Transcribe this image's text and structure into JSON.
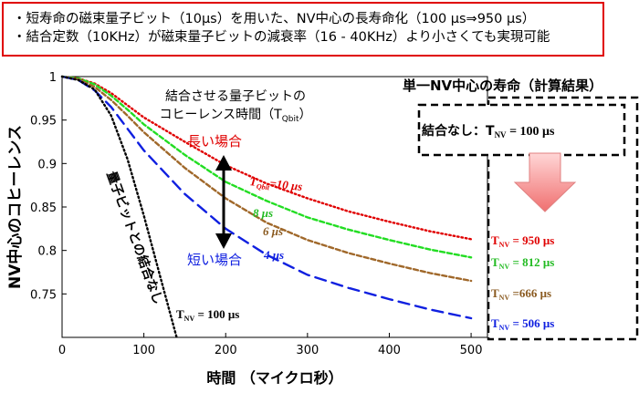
{
  "banner": {
    "line1": "・短寿命の磁束量子ビット（10μs）を用いた、NV中心の長寿命化（100 μs⇒950 μs）",
    "line2": "・結合定数（10KHz）が磁束量子ビットの減衰率（16 - 40KHz）より小さくても実現可能"
  },
  "chart_data": {
    "type": "line",
    "xlabel": "時間 （マイクロ秒）",
    "ylabel": "NV中心のコヒーレンス",
    "xlim": [
      0,
      520
    ],
    "ylim": [
      0.7,
      1.0
    ],
    "xticks": [
      "0",
      "100",
      "200",
      "300",
      "400",
      "500"
    ],
    "yticks": [
      "0.75",
      "0.8",
      "0.85",
      "0.9",
      "0.95",
      "1"
    ],
    "series": [
      {
        "key": "tq10",
        "color": "#e00000",
        "dash": "dotted",
        "x": [
          0,
          20,
          40,
          60,
          80,
          100,
          150,
          200,
          250,
          300,
          350,
          400,
          450,
          500
        ],
        "y": [
          1.0,
          0.998,
          0.992,
          0.981,
          0.967,
          0.953,
          0.925,
          0.898,
          0.877,
          0.86,
          0.845,
          0.833,
          0.822,
          0.813
        ]
      },
      {
        "key": "tq8",
        "color": "#22dd22",
        "dash": "dashed-short",
        "x": [
          0,
          20,
          40,
          60,
          80,
          100,
          150,
          200,
          250,
          300,
          350,
          400,
          450,
          500
        ],
        "y": [
          1.0,
          0.998,
          0.991,
          0.978,
          0.962,
          0.945,
          0.91,
          0.879,
          0.857,
          0.838,
          0.824,
          0.812,
          0.801,
          0.792
        ]
      },
      {
        "key": "tq6",
        "color": "#a0682a",
        "dash": "dashed-short",
        "x": [
          0,
          20,
          40,
          60,
          80,
          100,
          150,
          200,
          250,
          300,
          350,
          400,
          450,
          500
        ],
        "y": [
          1.0,
          0.997,
          0.988,
          0.973,
          0.955,
          0.936,
          0.895,
          0.86,
          0.832,
          0.812,
          0.797,
          0.785,
          0.774,
          0.765
        ]
      },
      {
        "key": "tq4",
        "color": "#1020e0",
        "dash": "dashed-long",
        "x": [
          0,
          20,
          40,
          60,
          80,
          100,
          150,
          200,
          250,
          300,
          350,
          400,
          450,
          500
        ],
        "y": [
          1.0,
          0.996,
          0.984,
          0.965,
          0.94,
          0.915,
          0.865,
          0.825,
          0.795,
          0.772,
          0.757,
          0.744,
          0.732,
          0.722
        ]
      },
      {
        "key": "none",
        "color": "#000000",
        "dash": "dotted",
        "x": [
          0,
          20,
          40,
          60,
          80,
          100,
          120,
          140
        ],
        "y": [
          1.0,
          0.996,
          0.985,
          0.955,
          0.905,
          0.84,
          0.77,
          0.7
        ]
      }
    ]
  },
  "annotations": {
    "header_line1": "結合させる量子ビットの",
    "header_line2_prefix": "コヒーレンス時間（T",
    "header_line2_sub": "Qbit",
    "header_line2_suffix": "）",
    "long_label": "長い場合",
    "short_label": "短い場合",
    "tq10_main": "T",
    "tq10_sub": "Qbit",
    "tq10_rest": "=10 μs",
    "tq8": "8 μs",
    "tq6": "6 μs",
    "tq4": "4 μs",
    "no_coupling": "量子ビットとの結合なし",
    "tnv100_main": "T",
    "tnv100_sub": "NV",
    "tnv100_rest": " = 100 μs"
  },
  "results": {
    "title": "単一NV中心の寿命（計算結果）",
    "inner_prefix": "結合なし：T",
    "inner_sub": "NV",
    "inner_rest": " = 100 μs",
    "items": [
      {
        "main": "T",
        "sub": "NV",
        "rest": " = 950 μs",
        "color": "#e00000"
      },
      {
        "main": "T",
        "sub": "NV",
        "rest": " = 812 μs",
        "color": "#22bb22"
      },
      {
        "main": "T",
        "sub": "NV",
        "rest": " =666 μs",
        "color": "#8a5a20"
      },
      {
        "main": "T",
        "sub": "NV",
        "rest": " = 506 μs",
        "color": "#1020e0"
      }
    ]
  }
}
